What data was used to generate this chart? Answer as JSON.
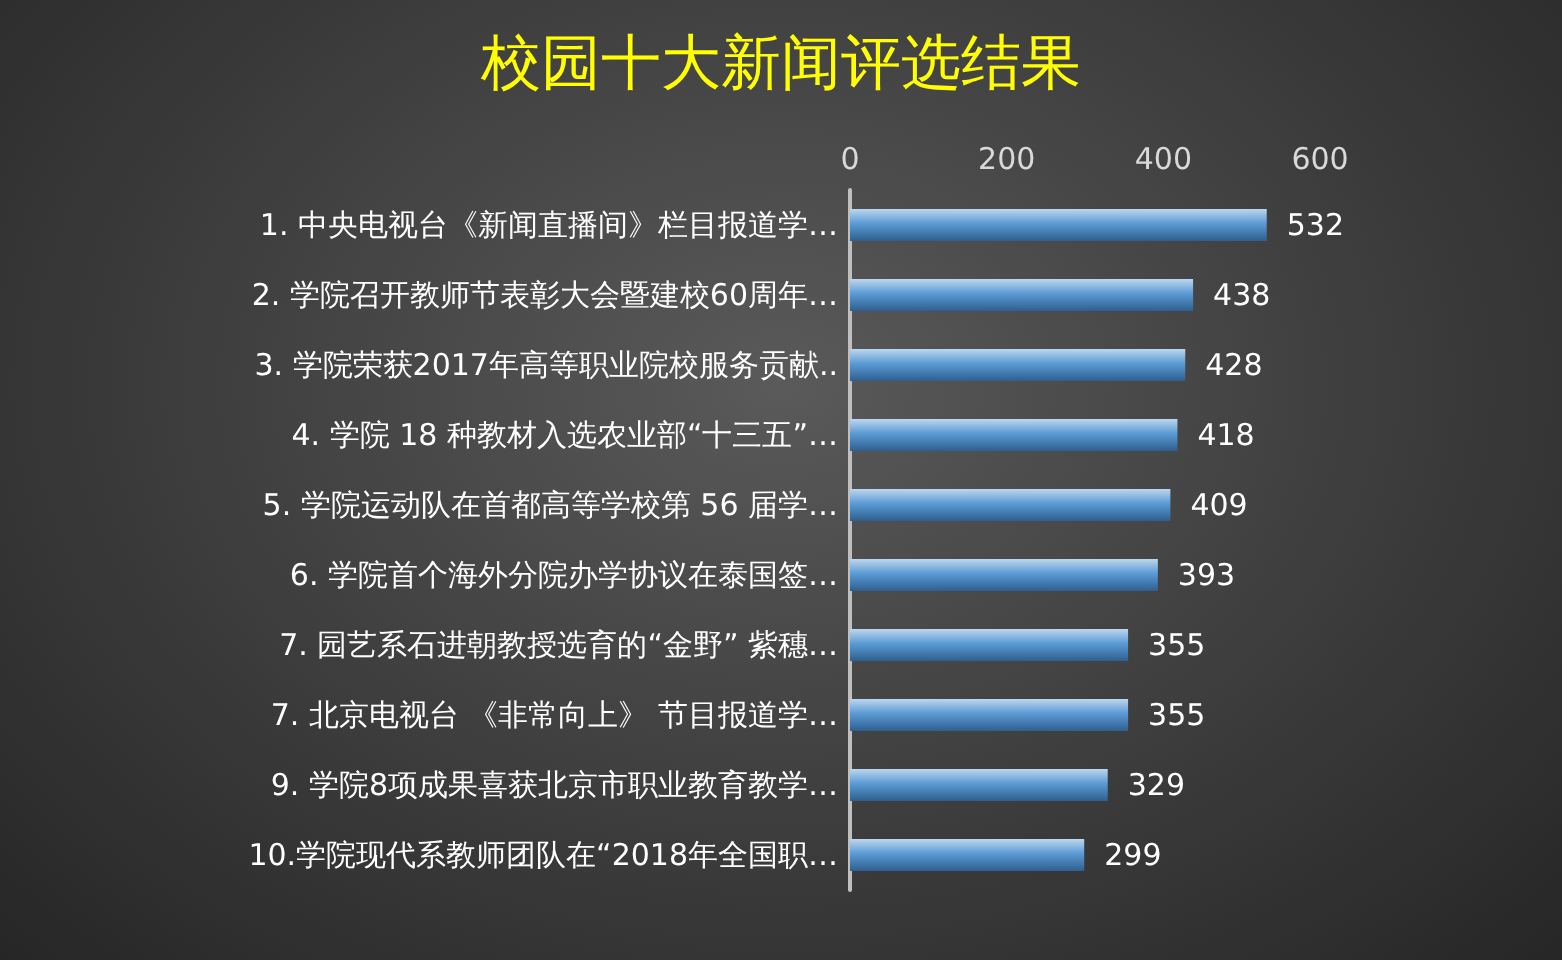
{
  "chart_data": {
    "type": "bar",
    "orientation": "horizontal",
    "title": "校园十大新闻评选结果",
    "categories": [
      "1. 中央电视台《新闻直播间》栏目报道学…",
      "2. 学院召开教师节表彰大会暨建校60周年…",
      "3. 学院荣获2017年高等职业院校服务贡献..",
      "4. 学院 18 种教材入选农业部“十三五”…",
      "5. 学院运动队在首都高等学校第 56 届学…",
      "6. 学院首个海外分院办学协议在泰国签…",
      "7. 园艺系石进朝教授选育的“金野” 紫穗…",
      "7. 北京电视台 《非常向上》 节目报道学…",
      "9. 学院8项成果喜获北京市职业教育教学…",
      "10.学院现代系教师团队在“2018年全国职…"
    ],
    "values": [
      532,
      438,
      428,
      418,
      409,
      393,
      355,
      355,
      329,
      299
    ],
    "color": "#5b9bd5",
    "xlim": [
      0,
      600
    ],
    "xticks": [
      0,
      200,
      400,
      600
    ],
    "data_labels": true
  }
}
